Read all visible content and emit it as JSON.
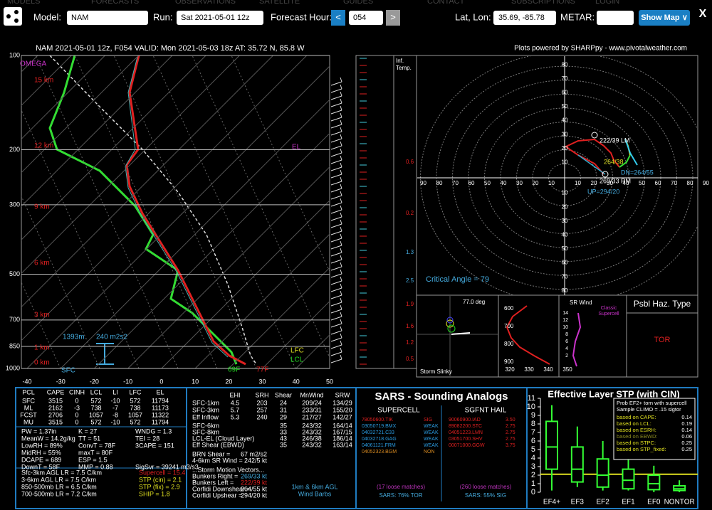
{
  "nav": [
    "MODELS",
    "FORECASTS",
    "OBSERVATIONS",
    "SATELLITE",
    "GUIDES",
    "CONTACT",
    "SUBSCRIPTIONS",
    "LOGIN"
  ],
  "toolbar": {
    "model_label": "Model:",
    "model": "NAM",
    "run_label": "Run:",
    "run": "Sat 2021-05-01 12z",
    "forecast_hour_label": "Forecast Hour:",
    "prev": "<",
    "forecast_hour": "054",
    "next": ">",
    "latlon_label": "Lat, Lon:",
    "latlon": "35.69, -85.78",
    "metar_label": "METAR:",
    "show_map": "Show Map ∨",
    "close": "X"
  },
  "header": {
    "title": "NAM 2021-05-01 12z, F054  VALID: Mon 2021-05-03 18z  AT: 35.72 N, 85.8 W",
    "credit": "Plots powered by SHARPpy - www.pivotalweather.com"
  },
  "skewt": {
    "plim": [
      100,
      1000
    ],
    "pressure_ticks": [
      100,
      200,
      300,
      500,
      700,
      850,
      1000
    ],
    "tlim": [
      -40,
      50
    ],
    "temperature_ticks": [
      -40,
      -30,
      -20,
      -10,
      0,
      10,
      20,
      30,
      40,
      50
    ],
    "height_labels": [
      "15 km",
      "12 km",
      "9 km",
      "6 km",
      "3 km",
      "1 km",
      "0 km"
    ],
    "omega": "OMEGA",
    "el": "EL",
    "lfc": "LFC",
    "lcl": "LCL",
    "dewpoint": "69F",
    "temperature": "77F",
    "sfc": "SFC",
    "eff_base": "1393m",
    "eff_srh": "240 m2s2",
    "inflection_labels": [
      "0.6",
      "0.2",
      "1.3",
      "2.5",
      "1.9",
      "1.6",
      "1.2",
      "0.5"
    ],
    "inf_temp": [
      "Inf.",
      "Temp."
    ]
  },
  "hodograph": {
    "rings": [
      10,
      20,
      30,
      40,
      50,
      60,
      70,
      80
    ],
    "h_ticks": [
      10,
      20,
      30,
      40,
      50,
      60,
      70,
      80,
      90
    ],
    "lm": "222/39 LM",
    "mean": "264/38",
    "rm": "269/33 RM",
    "dn": "DN=264/55",
    "up": "UP=294/20",
    "critical": "Critical Angle = 79"
  },
  "lower": {
    "slinky_deg": "77.0 deg",
    "slinky": "Storm Slinky",
    "theta_p_ticks": [
      600,
      700,
      800,
      900
    ],
    "theta_t_ticks": [
      320,
      330,
      340,
      350
    ],
    "sr_wind": "SR Wind",
    "sr_ticks": [
      14,
      12,
      10,
      8,
      6,
      4,
      2
    ],
    "classic": [
      "Classic",
      "Supercell"
    ],
    "haz_title": "Psbl Haz. Type",
    "haz": "TOR"
  },
  "thermo": {
    "header": [
      "PCL",
      "CAPE",
      "CINH",
      "LCL",
      "LI",
      "LFC",
      "EL"
    ],
    "rows": [
      [
        "SFC",
        "3515",
        "0",
        "572",
        "-10",
        "572",
        "11794"
      ],
      [
        "ML",
        "2162",
        "-3",
        "738",
        "-7",
        "738",
        "11173"
      ],
      [
        "FCST",
        "2706",
        "0",
        "1057",
        "-8",
        "1057",
        "11322"
      ],
      [
        "MU",
        "3515",
        "0",
        "572",
        "-10",
        "572",
        "11794"
      ]
    ],
    "params": [
      [
        "PW = 1.37in",
        "K = 27",
        "WNDG = 1.3"
      ],
      [
        "MeanW = 14.2g/kg",
        "TT = 51",
        "TEI = 28"
      ],
      [
        "LowRH = 89%",
        "ConvT = 78F",
        "3CAPE = 151"
      ],
      [
        "MidRH = 55%",
        "maxT = 80F"
      ],
      [
        "DCAPE = 689",
        "ESP = 1.5"
      ],
      [
        "DownT = 58F",
        "MMP = 0.88",
        "SigSvr = 39241 m3/s3"
      ]
    ],
    "lapse": [
      "Sfc-3km AGL LR = 7.5 C/km",
      "3-6km AGL LR = 7.5 C/km",
      "850-500mb LR = 6.5 C/km",
      "700-500mb LR = 7.2 C/km"
    ],
    "indices": [
      "Supercell = 15.4",
      "STP (cin) = 2.1",
      "STP (fix) = 2.9",
      "SHIP = 1.8"
    ]
  },
  "kinematic": {
    "header": [
      "EHI",
      "SRH",
      "Shear",
      "MnWind",
      "SRW"
    ],
    "rows": [
      [
        "SFC-1km",
        "4.5",
        "203",
        "24",
        "209/24",
        "134/29"
      ],
      [
        "SFC-3km",
        "5.7",
        "257",
        "31",
        "233/31",
        "155/20"
      ],
      [
        "Eff Inflow",
        "5.3",
        "240",
        "29",
        "217/27",
        "142/27"
      ]
    ],
    "shear_rows": [
      [
        "SFC-6km",
        "35",
        "243/32",
        "164/14"
      ],
      [
        "SFC-8km",
        "33",
        "243/32",
        "167/15"
      ],
      [
        "LCL-EL (Cloud Layer)",
        "43",
        "246/38",
        "186/14"
      ],
      [
        "Eff Shear (EBWD)",
        "35",
        "243/32",
        "163/14"
      ]
    ],
    "pairs": [
      [
        "BRN Shear =",
        "67 m2/s2"
      ],
      [
        "4-6km SR Wind =",
        "242/5 kt"
      ]
    ],
    "storm_heading": "...Storm Motion Vectors...",
    "vectors": [
      [
        "Bunkers Right =",
        "269/33 kt"
      ],
      [
        "Bunkers Left =",
        "222/39 kt"
      ],
      [
        "Corfidi Downshear =",
        "264/55 kt"
      ],
      [
        "Corfidi Upshear =",
        "294/20 kt"
      ]
    ],
    "barbs": [
      "1km & 6km AGL",
      "Wind Barbs"
    ]
  },
  "sars": {
    "title": "SARS - Sounding Analogs",
    "supercell_title": "SUPERCELL",
    "hail_title": "SGFNT HAIL",
    "supercell": [
      [
        "78050600.TIK",
        "SIG"
      ],
      [
        "03050719.BMX",
        "WEAK"
      ],
      [
        "04032721.C33",
        "WEAK"
      ],
      [
        "04032718.GAG",
        "WEAK"
      ],
      [
        "04061121.FRM",
        "WEAK"
      ],
      [
        "04052323.BGM",
        "NON"
      ]
    ],
    "hail": [
      [
        "90060900.IAD",
        "3.50"
      ],
      [
        "89082200.STC",
        "2.75"
      ],
      [
        "04051223.LMN",
        "2.75"
      ],
      [
        "03051700.SHV",
        "2.75"
      ],
      [
        "00071000.GGW",
        "3.75"
      ]
    ],
    "supercell_matches": "(17 loose matches)",
    "hail_matches": "(260 loose matches)",
    "supercell_result": "SARS: 76% TOR",
    "hail_result": "SARS: 55% SIG"
  },
  "chart_data": {
    "type": "box",
    "title": "Effective Layer STP (with CIN)",
    "categories": [
      "EF4+",
      "EF3",
      "EF2",
      "EF1",
      "EF0",
      "NONTOR"
    ],
    "whisker_low": [
      0.2,
      0.6,
      0.2,
      0.2,
      0,
      0
    ],
    "q1": [
      2.7,
      1.2,
      0.6,
      0.4,
      0.3,
      0.2
    ],
    "median": [
      5.3,
      2.7,
      2.0,
      1.4,
      1.0,
      0.4
    ],
    "q3": [
      8.3,
      5.3,
      3.9,
      2.7,
      2.0,
      0.75
    ],
    "whisker_high": [
      10.2,
      7.7,
      6.0,
      4.3,
      3.1,
      1.4
    ],
    "current": 2.1,
    "color": "#33ff33",
    "ylim": [
      0,
      11
    ],
    "yticks": [
      0,
      1,
      2,
      3,
      4,
      5,
      6,
      7,
      8,
      9,
      10,
      11
    ],
    "legend": {
      "title": [
        "Prob EF2+ torn with supercell",
        "Sample CLIMO = .15 sigtor"
      ],
      "rows": [
        [
          "based on CAPE:",
          "0.14"
        ],
        [
          "based on LCL:",
          "0.19"
        ],
        [
          "based on ESRH:",
          "0.14"
        ],
        [
          "based on EBWD:",
          "0.06"
        ],
        [
          "based on STPC:",
          "0.25"
        ],
        [
          "based on STP_fixed:",
          "0.25"
        ]
      ]
    }
  }
}
